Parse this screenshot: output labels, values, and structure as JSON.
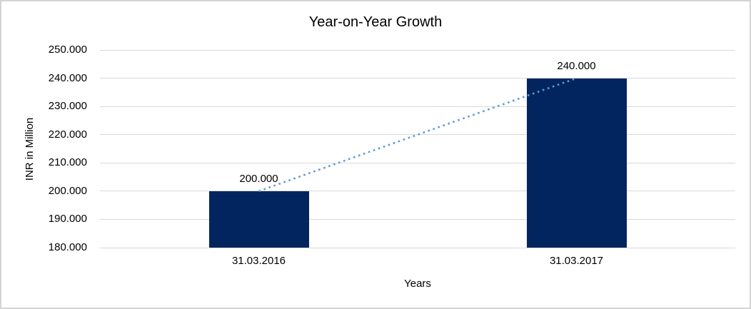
{
  "chart_data": {
    "type": "bar",
    "title": "Year-on-Year Growth",
    "xlabel": "Years",
    "ylabel": "INR in Million",
    "categories": [
      "31.03.2016",
      "31.03.2017"
    ],
    "values": [
      200000,
      240000
    ],
    "data_labels": [
      "200.000",
      "240.000"
    ],
    "ylim": [
      180000,
      250000
    ],
    "y_ticks": [
      {
        "value": 250000,
        "label": "250.000"
      },
      {
        "value": 240000,
        "label": "240.000"
      },
      {
        "value": 230000,
        "label": "230.000"
      },
      {
        "value": 220000,
        "label": "220.000"
      },
      {
        "value": 210000,
        "label": "210.000"
      },
      {
        "value": 200000,
        "label": "200.000"
      },
      {
        "value": 190000,
        "label": "190.000"
      },
      {
        "value": 180000,
        "label": "180.000"
      }
    ],
    "grid": true,
    "legend": "none",
    "trendline": {
      "style": "dotted",
      "color": "#5B9BD5",
      "from_value": 200000,
      "to_value": 240000
    }
  },
  "colors": {
    "bar": "#02255F",
    "trendline": "#5B9BD5",
    "gridline": "#D9D9D9",
    "axis_line": "#D9D9D9",
    "text": "#000000",
    "chart_border": "#D3D3D3"
  }
}
